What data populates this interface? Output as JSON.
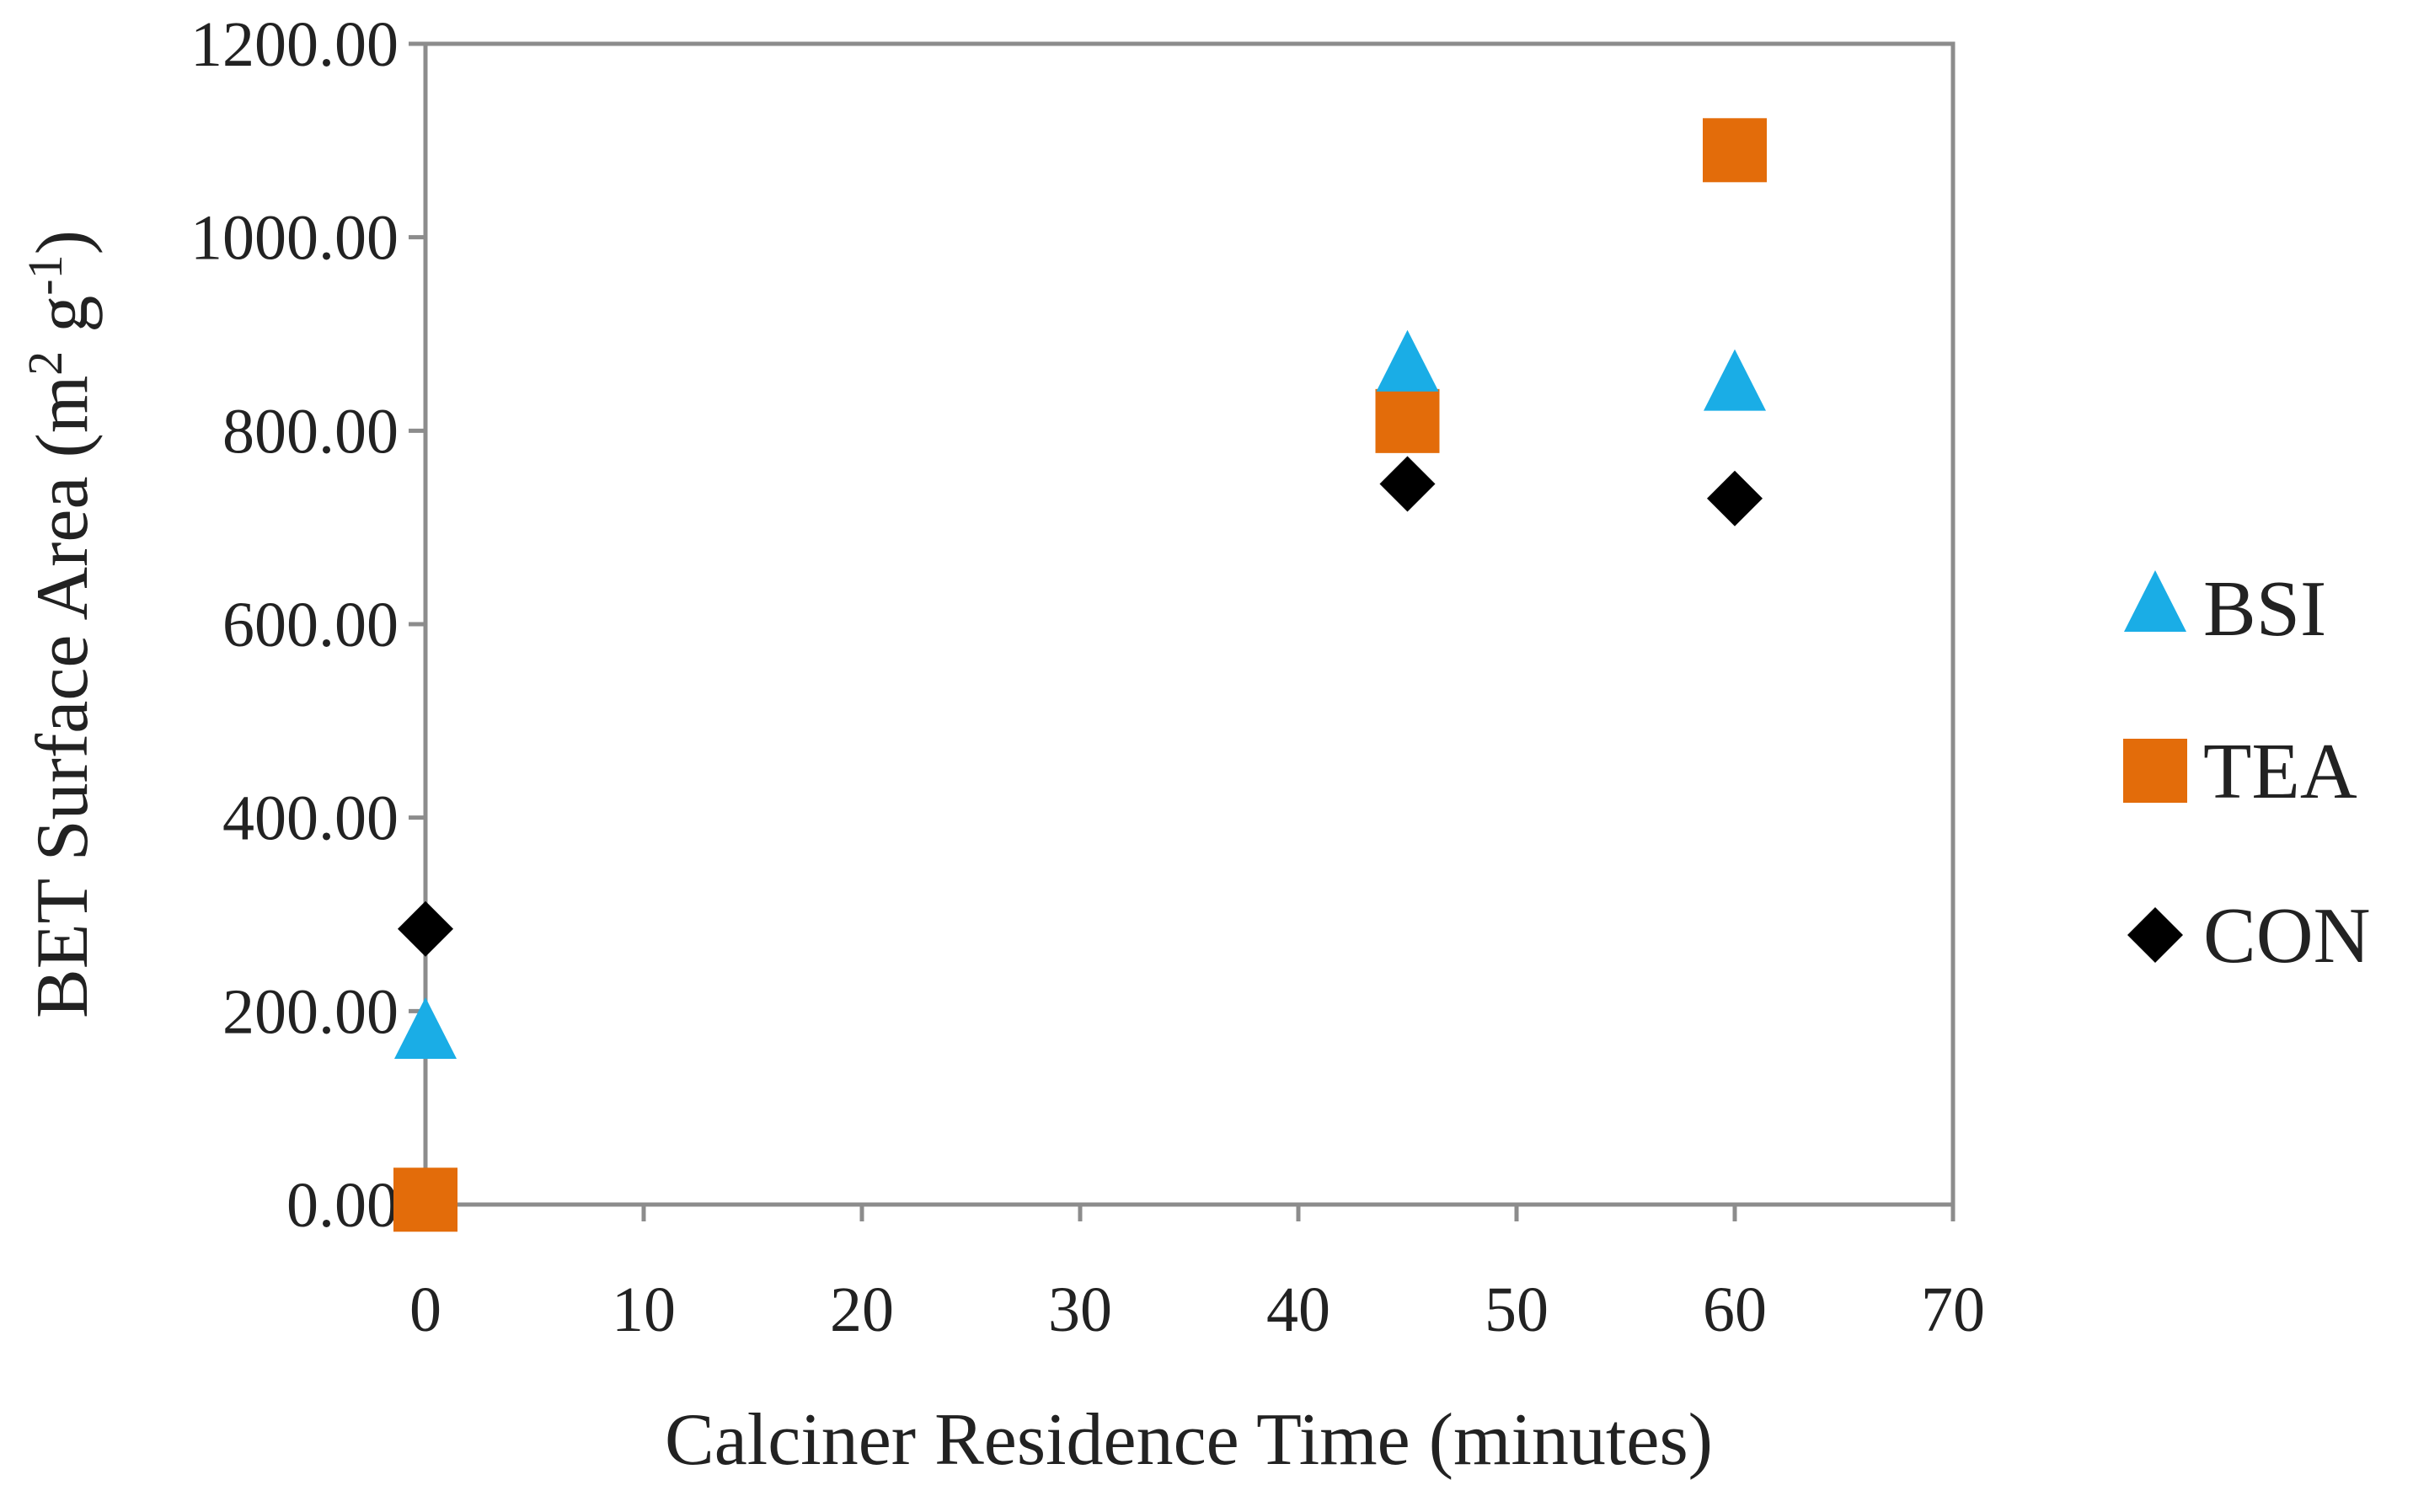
{
  "chart_data": {
    "type": "scatter",
    "xlabel": "Calciner Residence Time (minutes)",
    "ylabel": {
      "base": "BET Surface Area (m",
      "sup1": "2",
      "mid": " g",
      "sup2": "-1",
      "end": ")"
    },
    "xlim": [
      0,
      70
    ],
    "ylim": [
      0,
      1200
    ],
    "x_ticks": [
      "0",
      "10",
      "20",
      "30",
      "40",
      "50",
      "60",
      "70"
    ],
    "y_ticks": [
      "0.00",
      "200.00",
      "400.00",
      "600.00",
      "800.00",
      "1000.00",
      "1200.00"
    ],
    "grid": false,
    "legend_position": "right",
    "series": [
      {
        "name": "BSI",
        "marker": "triangle",
        "color": "#1AADE6",
        "points": [
          {
            "x": 0,
            "y": 175
          },
          {
            "x": 45,
            "y": 865
          },
          {
            "x": 60,
            "y": 845
          }
        ]
      },
      {
        "name": "TEA",
        "marker": "square",
        "color": "#E36C0A",
        "points": [
          {
            "x": 0,
            "y": 5
          },
          {
            "x": 45,
            "y": 810
          },
          {
            "x": 60,
            "y": 1090
          }
        ]
      },
      {
        "name": "CON",
        "marker": "diamond",
        "color": "#000000",
        "points": [
          {
            "x": 0,
            "y": 285
          },
          {
            "x": 45,
            "y": 745
          },
          {
            "x": 60,
            "y": 730
          }
        ]
      }
    ]
  }
}
